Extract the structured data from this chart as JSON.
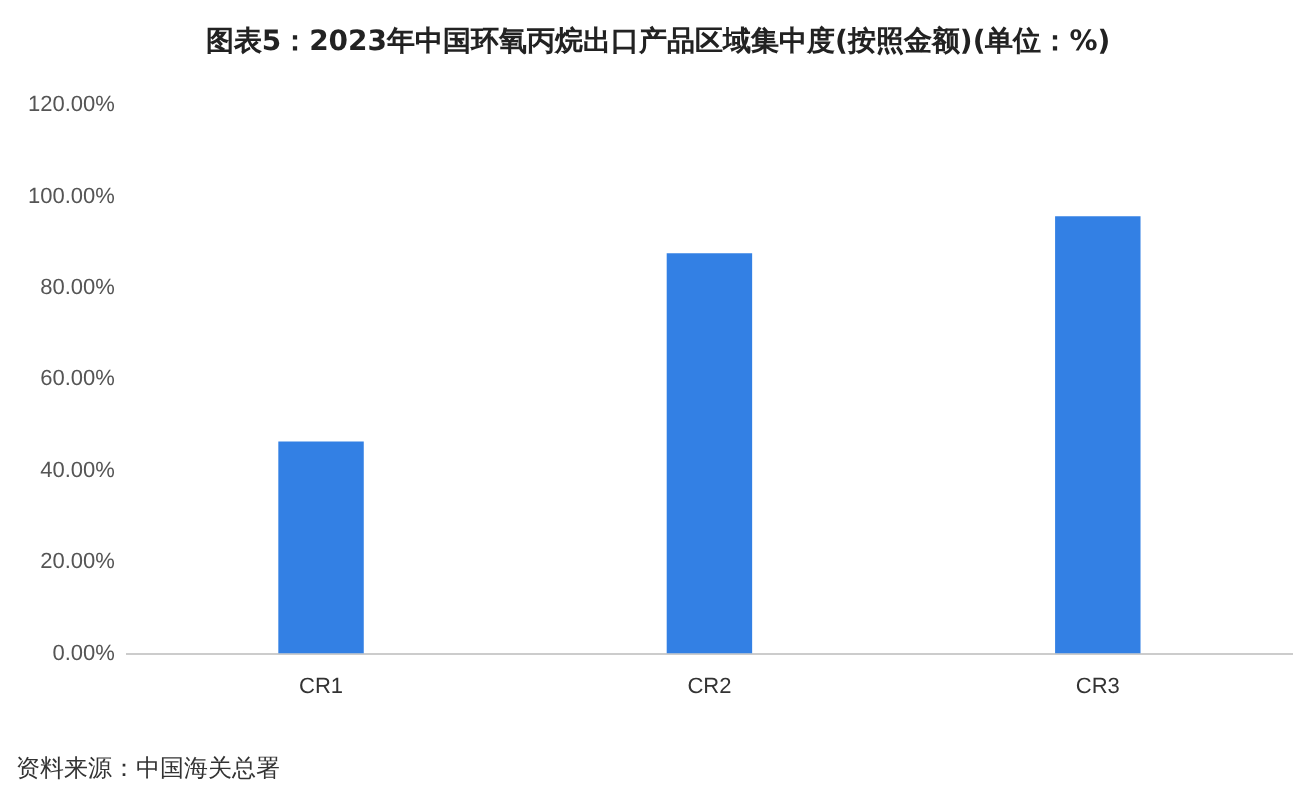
{
  "chart_data": {
    "type": "bar",
    "title": "图表5：2023年中国环氧丙烷出口产品区域集中度(按照金额)(单位：%)",
    "categories": [
      "CR1",
      "CR2",
      "CR3"
    ],
    "values": [
      46.4,
      87.6,
      95.7
    ],
    "color": "#3380e4",
    "ylim": [
      0,
      120
    ],
    "yticks": [
      {
        "value": 0,
        "label": "0.00%"
      },
      {
        "value": 20,
        "label": "20.00%"
      },
      {
        "value": 40,
        "label": "40.00%"
      },
      {
        "value": 60,
        "label": "60.00%"
      },
      {
        "value": 80,
        "label": "80.00%"
      },
      {
        "value": 100,
        "label": "100.00%"
      },
      {
        "value": 120,
        "label": "120.00%"
      }
    ],
    "annotations": [
      "资料来源：中国海关总署"
    ]
  }
}
